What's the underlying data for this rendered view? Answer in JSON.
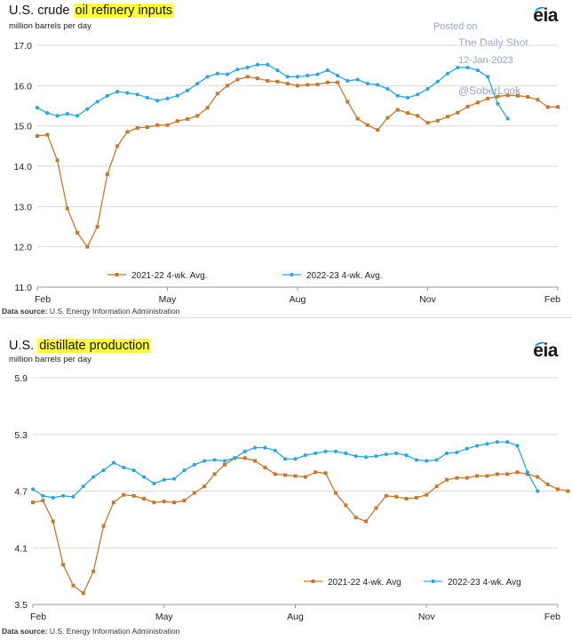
{
  "watermark": {
    "posted_on": "Posted on",
    "site": "The Daily Shot",
    "date": "12-Jan-2023",
    "handle": "@SoberLook"
  },
  "logo": {
    "text": "eia",
    "arc_color": "#0096d6"
  },
  "chart_data": [
    {
      "type": "line",
      "title_plain": "U.S. crude",
      "title_highlight": "oil refinery inputs",
      "units_label": "million barrels per day",
      "source_label": "Data source:",
      "source_text": "U.S. Energy Information Administration",
      "ylim": [
        11.0,
        17.0
      ],
      "yticks": [
        "17.0",
        "16.0",
        "15.0",
        "14.0",
        "13.0",
        "12.0",
        "11.0"
      ],
      "ytick_values": [
        17,
        16,
        15,
        14,
        13,
        12,
        11
      ],
      "xticks": [
        "Feb",
        "May",
        "Aug",
        "Nov",
        "Feb"
      ],
      "xtick_weeks": [
        0,
        13,
        26,
        39,
        52
      ],
      "grid": true,
      "series": [
        {
          "name": "2021-22  4-wk. Avg.",
          "color": "#c47a2c",
          "marker": "square",
          "values": [
            14.75,
            14.78,
            14.15,
            12.95,
            12.35,
            12.0,
            12.5,
            13.8,
            14.5,
            14.85,
            14.95,
            14.97,
            15.02,
            15.02,
            15.12,
            15.17,
            15.25,
            15.45,
            15.8,
            16.0,
            16.15,
            16.22,
            16.18,
            16.12,
            16.1,
            16.05,
            16.0,
            16.02,
            16.03,
            16.08,
            16.08,
            15.6,
            15.18,
            15.02,
            14.9,
            15.2,
            15.4,
            15.32,
            15.25,
            15.08,
            15.13,
            15.23,
            15.33,
            15.48,
            15.58,
            15.68,
            15.73,
            15.76,
            15.75,
            15.72,
            15.65,
            15.47,
            15.47
          ]
        },
        {
          "name": "2022-23  4-wk. Avg.",
          "color": "#2aa7df",
          "marker": "circle",
          "values": [
            15.45,
            15.32,
            15.25,
            15.3,
            15.25,
            15.42,
            15.6,
            15.75,
            15.85,
            15.82,
            15.78,
            15.7,
            15.63,
            15.68,
            15.75,
            15.88,
            16.05,
            16.22,
            16.3,
            16.28,
            16.4,
            16.45,
            16.52,
            16.52,
            16.38,
            16.22,
            16.22,
            16.25,
            16.28,
            16.38,
            16.25,
            16.12,
            16.15,
            16.05,
            16.02,
            15.92,
            15.75,
            15.7,
            15.78,
            15.92,
            16.1,
            16.3,
            16.45,
            16.45,
            16.38,
            16.22,
            15.55,
            15.18
          ]
        }
      ]
    },
    {
      "type": "line",
      "title_plain": "U.S.",
      "title_highlight": "distillate production",
      "units_label": "million barrels per day",
      "source_label": "Data source:",
      "source_text": "U.S. Energy Information Administration",
      "ylim": [
        3.5,
        5.9
      ],
      "yticks": [
        "5.9",
        "5.3",
        "4.7",
        "4.1",
        "3.5"
      ],
      "ytick_values": [
        5.9,
        5.3,
        4.7,
        4.1,
        3.5
      ],
      "xticks": [
        "Feb",
        "May",
        "Aug",
        "Nov",
        "Feb"
      ],
      "xtick_weeks": [
        0,
        13,
        26,
        39,
        52
      ],
      "grid": true,
      "series": [
        {
          "name": "2021-22  4-wk. Avg",
          "color": "#c47a2c",
          "marker": "square",
          "values": [
            4.58,
            4.6,
            4.38,
            3.92,
            3.7,
            3.62,
            3.85,
            4.33,
            4.58,
            4.66,
            4.65,
            4.62,
            4.58,
            4.59,
            4.58,
            4.6,
            4.68,
            4.75,
            4.88,
            4.98,
            5.05,
            5.05,
            5.02,
            4.95,
            4.88,
            4.87,
            4.86,
            4.85,
            4.9,
            4.89,
            4.68,
            4.55,
            4.42,
            4.38,
            4.52,
            4.65,
            4.64,
            4.62,
            4.63,
            4.66,
            4.75,
            4.82,
            4.84,
            4.84,
            4.86,
            4.86,
            4.88,
            4.88,
            4.9,
            4.88,
            4.85,
            4.77,
            4.72,
            4.7
          ]
        },
        {
          "name": "2022-23  4-wk. Avg",
          "color": "#2aa7df",
          "marker": "circle",
          "values": [
            4.72,
            4.65,
            4.63,
            4.65,
            4.64,
            4.75,
            4.85,
            4.92,
            5.0,
            4.95,
            4.92,
            4.85,
            4.78,
            4.82,
            4.83,
            4.92,
            4.98,
            5.02,
            5.03,
            5.02,
            5.05,
            5.12,
            5.16,
            5.16,
            5.13,
            5.04,
            5.04,
            5.08,
            5.1,
            5.12,
            5.12,
            5.1,
            5.07,
            5.06,
            5.07,
            5.09,
            5.1,
            5.08,
            5.03,
            5.02,
            5.03,
            5.1,
            5.11,
            5.15,
            5.18,
            5.2,
            5.22,
            5.22,
            5.18,
            4.9,
            4.7
          ]
        }
      ]
    }
  ]
}
